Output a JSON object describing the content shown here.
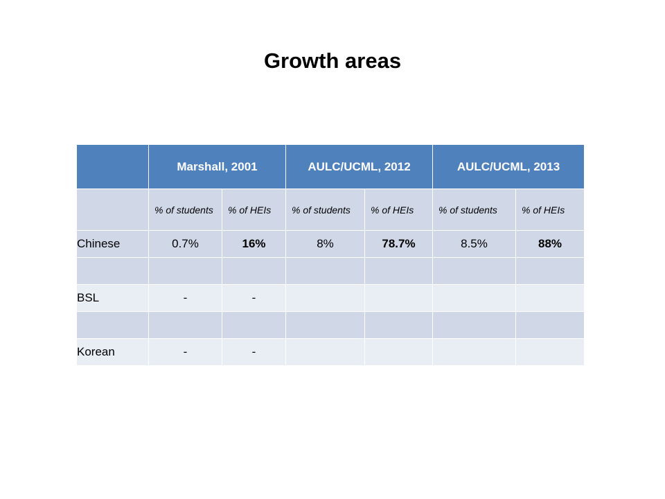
{
  "title": "Growth areas",
  "table": {
    "headers": [
      "",
      "Marshall, 2001",
      "AULC/UCML, 2012",
      "AULC/UCML, 2013"
    ],
    "subheaders": [
      "",
      "% of students",
      "% of HEIs",
      "% of students",
      " % of HEIs",
      "% of students",
      " % of HEIs"
    ],
    "rows": [
      [
        "Chinese",
        "0.7%",
        "16%",
        "8%",
        "78.7%",
        "8.5%",
        "88%"
      ],
      [
        "",
        "",
        "",
        "",
        "",
        "",
        ""
      ],
      [
        "BSL",
        "-",
        "-",
        "",
        "",
        "",
        ""
      ],
      [
        "",
        "",
        "",
        "",
        "",
        "",
        ""
      ],
      [
        "Korean",
        "-",
        "-",
        "",
        "",
        "",
        ""
      ]
    ]
  }
}
